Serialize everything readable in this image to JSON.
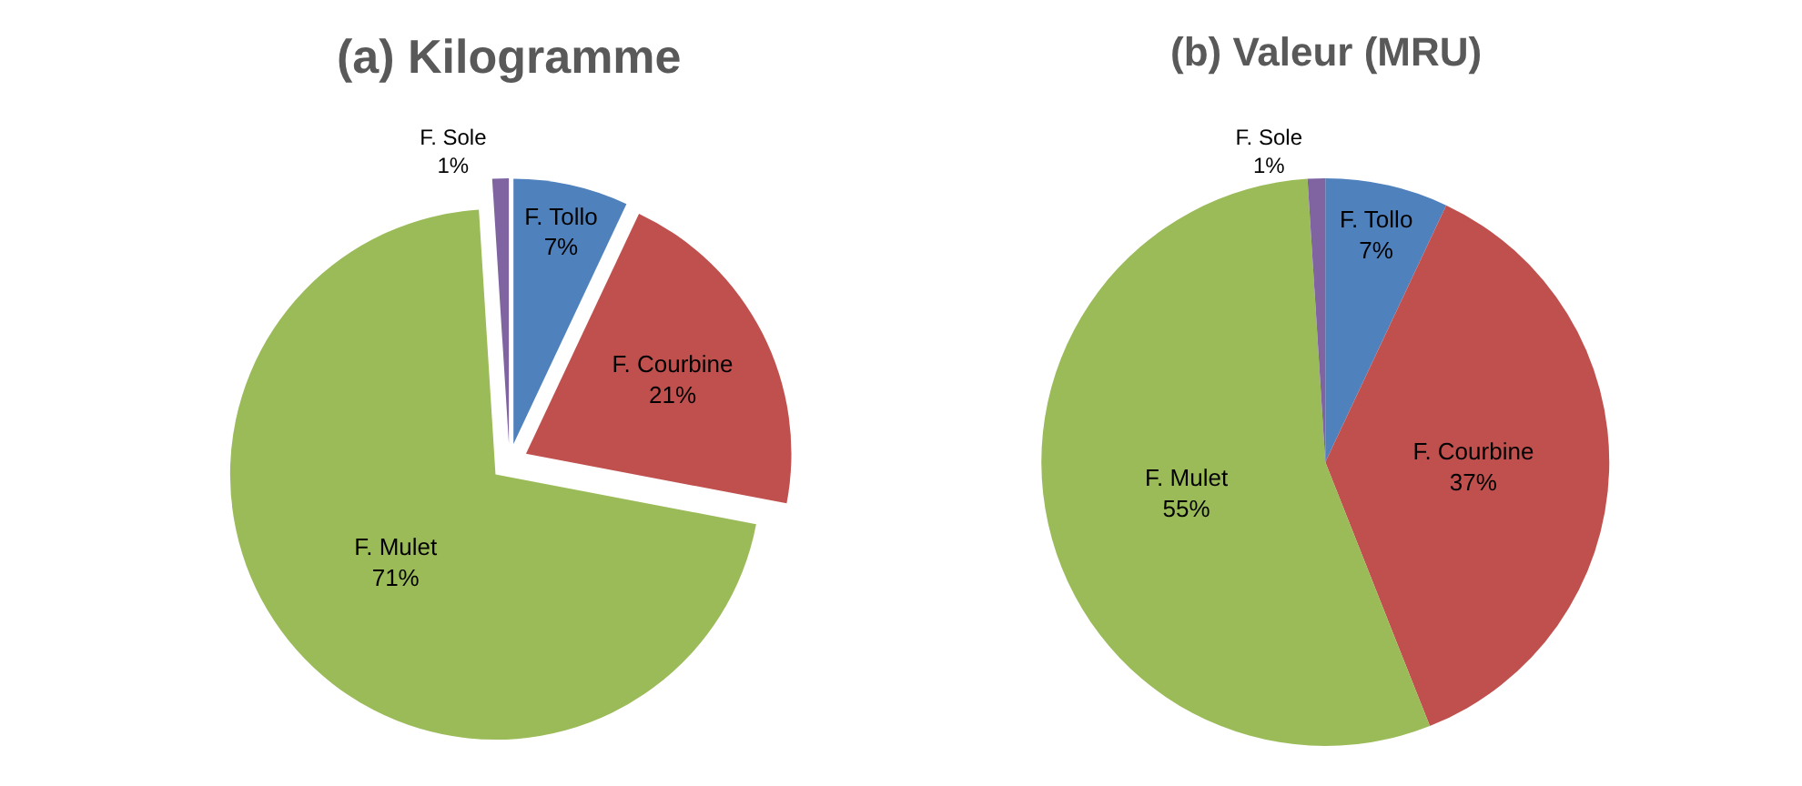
{
  "chart_data": [
    {
      "type": "pie",
      "title": "(a) Kilogramme",
      "categories": [
        "F. Tollo",
        "F. Courbine",
        "F. Mulet",
        "F. Sole"
      ],
      "values": [
        7,
        21,
        71,
        1
      ],
      "value_labels": [
        "7%",
        "21%",
        "71%",
        "1%"
      ],
      "colors": [
        "#4f81bd",
        "#c0504d",
        "#9bbb59",
        "#8064a2"
      ],
      "legend": false
    },
    {
      "type": "pie",
      "title": "(b) Valeur (MRU)",
      "categories": [
        "F. Tollo",
        "F. Courbine",
        "F. Mulet",
        "F. Sole"
      ],
      "values": [
        7,
        37,
        55,
        1
      ],
      "value_labels": [
        "7%",
        "37%",
        "55%",
        "1%"
      ],
      "colors": [
        "#4f81bd",
        "#c0504d",
        "#9bbb59",
        "#8064a2"
      ],
      "legend": false
    }
  ]
}
